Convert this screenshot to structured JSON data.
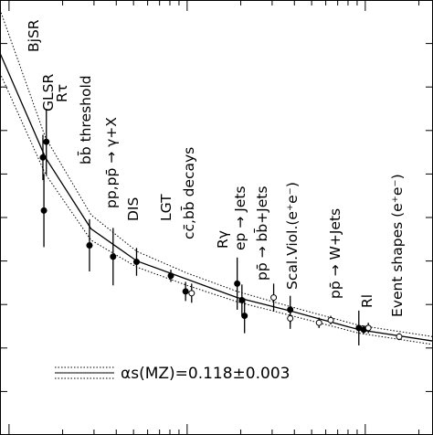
{
  "chart_data": {
    "type": "scatter",
    "xscale": "log",
    "xlim": [
      0.89,
      240
    ],
    "ylim": [
      0,
      0.5
    ],
    "xticks": [
      1,
      10,
      100
    ],
    "xminorticks": [
      2,
      3,
      4,
      5,
      6,
      7,
      8,
      9,
      20,
      30,
      40,
      50,
      60,
      70,
      80,
      90,
      200
    ],
    "yticks": [
      0.05,
      0.1,
      0.15,
      0.2,
      0.25,
      0.3,
      0.35,
      0.4,
      0.45
    ],
    "color": "#000000",
    "series": [
      {
        "style": "solid",
        "x": [
          0.89,
          1.6,
          2.89,
          5.22,
          10,
          19.1,
          38.9,
          92.3,
          240
        ],
        "values": [
          0.439,
          0.319,
          0.237,
          0.2,
          0.179,
          0.158,
          0.142,
          0.121,
          0.108
        ]
      },
      {
        "style": "dotted",
        "x": [
          0.89,
          1.6,
          2.89,
          5.22,
          10,
          19.1,
          38.9,
          92.3,
          240
        ],
        "values": [
          0.489,
          0.342,
          0.253,
          0.211,
          0.186,
          0.165,
          0.147,
          0.126,
          0.113
        ]
      },
      {
        "style": "dotted",
        "x": [
          0.89,
          1.6,
          2.89,
          5.22,
          10,
          19.1,
          38.9,
          92.3,
          240
        ],
        "values": [
          0.416,
          0.3,
          0.224,
          0.193,
          0.172,
          0.153,
          0.137,
          0.117,
          0.104
        ]
      }
    ],
    "measurements": {
      "x": [
        1.57,
        1.55,
        1.62,
        2.83,
        3.84,
        5.2,
        8.1,
        9.8,
        10.6,
        19.1,
        20.3,
        21,
        30.6,
        37.9,
        37.9,
        55,
        64,
        92,
        98,
        104,
        155
      ],
      "values": [
        0.258,
        0.319,
        0.337,
        0.218,
        0.205,
        0.199,
        0.183,
        0.165,
        0.163,
        0.174,
        0.155,
        0.137,
        0.158,
        0.144,
        0.134,
        0.129,
        0.132,
        0.123,
        0.121,
        0.123,
        0.113
      ],
      "errors": [
        0.042,
        0.026,
        0.038,
        0.03,
        0.033,
        0.016,
        0.007,
        0.011,
        0.011,
        0.03,
        0.018,
        0.02,
        0.016,
        0.016,
        0.012,
        0.006,
        0.005,
        0.02,
        0.005,
        0.006,
        0.004
      ],
      "open": [
        false,
        false,
        false,
        false,
        false,
        false,
        false,
        false,
        true,
        false,
        false,
        false,
        true,
        false,
        true,
        true,
        true,
        false,
        false,
        true,
        true
      ]
    },
    "annotations": [
      "BjSR",
      "GLSR",
      "Rτ",
      "bb̄ threshold",
      "pp,pp̄ → γ+X",
      "DIS",
      "LGT",
      "cc̄,bb̄ decays",
      "Rγ",
      "ep → Jets",
      "pp̄ → bb̄+Jets",
      "Scal.Viol.(e⁺e⁻)",
      "pp̄ → W+Jets",
      "Rl",
      "Event shapes (e⁺e⁻)"
    ],
    "legend_label": "αs(MZ)=0.118±0.003"
  }
}
